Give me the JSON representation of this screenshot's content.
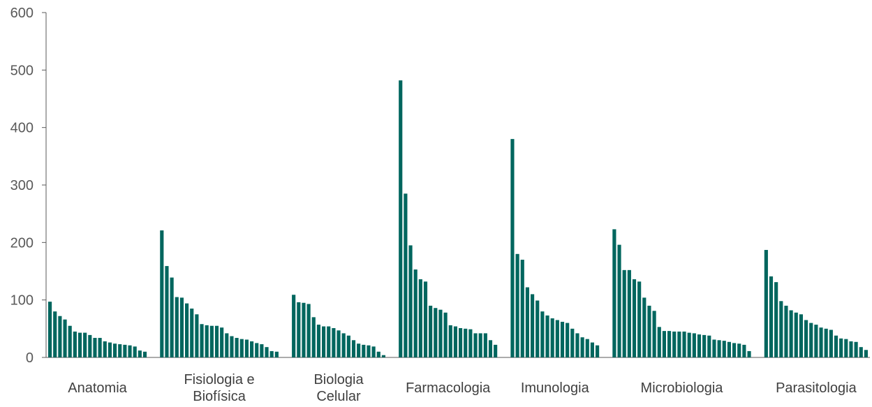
{
  "chart_data": {
    "type": "bar",
    "title": "",
    "xlabel": "",
    "ylabel": "",
    "ylim": [
      0,
      600
    ],
    "yticks": [
      0,
      100,
      200,
      300,
      400,
      500,
      600
    ],
    "grid": false,
    "legend": "none",
    "bar_color": "#00665E",
    "axis_color": "#595959",
    "groups": [
      {
        "label": "Anatomia",
        "values": [
          97,
          80,
          72,
          66,
          55,
          45,
          43,
          43,
          39,
          34,
          34,
          28,
          26,
          24,
          23,
          22,
          21,
          19,
          12,
          10
        ]
      },
      {
        "label": "Fisiologia e\nBiofísica",
        "values": [
          221,
          159,
          139,
          105,
          104,
          94,
          85,
          75,
          58,
          56,
          55,
          55,
          52,
          42,
          37,
          34,
          32,
          31,
          28,
          25,
          23,
          18,
          11,
          10
        ]
      },
      {
        "label": "Biologia\nCelular",
        "values": [
          109,
          96,
          95,
          93,
          70,
          57,
          54,
          54,
          51,
          47,
          42,
          38,
          30,
          24,
          22,
          21,
          19,
          10,
          4
        ]
      },
      {
        "label": "Farmacologia",
        "values": [
          482,
          285,
          195,
          153,
          136,
          132,
          90,
          86,
          83,
          78,
          56,
          54,
          51,
          50,
          49,
          42,
          42,
          42,
          30,
          22
        ]
      },
      {
        "label": "Imunologia",
        "values": [
          380,
          180,
          170,
          122,
          110,
          99,
          80,
          73,
          68,
          65,
          62,
          60,
          50,
          42,
          35,
          32,
          26,
          21
        ]
      },
      {
        "label": "Microbiologia",
        "values": [
          223,
          196,
          152,
          152,
          136,
          132,
          104,
          90,
          81,
          53,
          46,
          46,
          45,
          45,
          45,
          43,
          42,
          40,
          39,
          38,
          31,
          30,
          29,
          27,
          25,
          24,
          22,
          11
        ]
      },
      {
        "label": "Parasitologia",
        "values": [
          187,
          141,
          131,
          98,
          90,
          82,
          78,
          75,
          65,
          60,
          57,
          52,
          50,
          48,
          38,
          33,
          32,
          28,
          27,
          18,
          13
        ]
      }
    ]
  }
}
